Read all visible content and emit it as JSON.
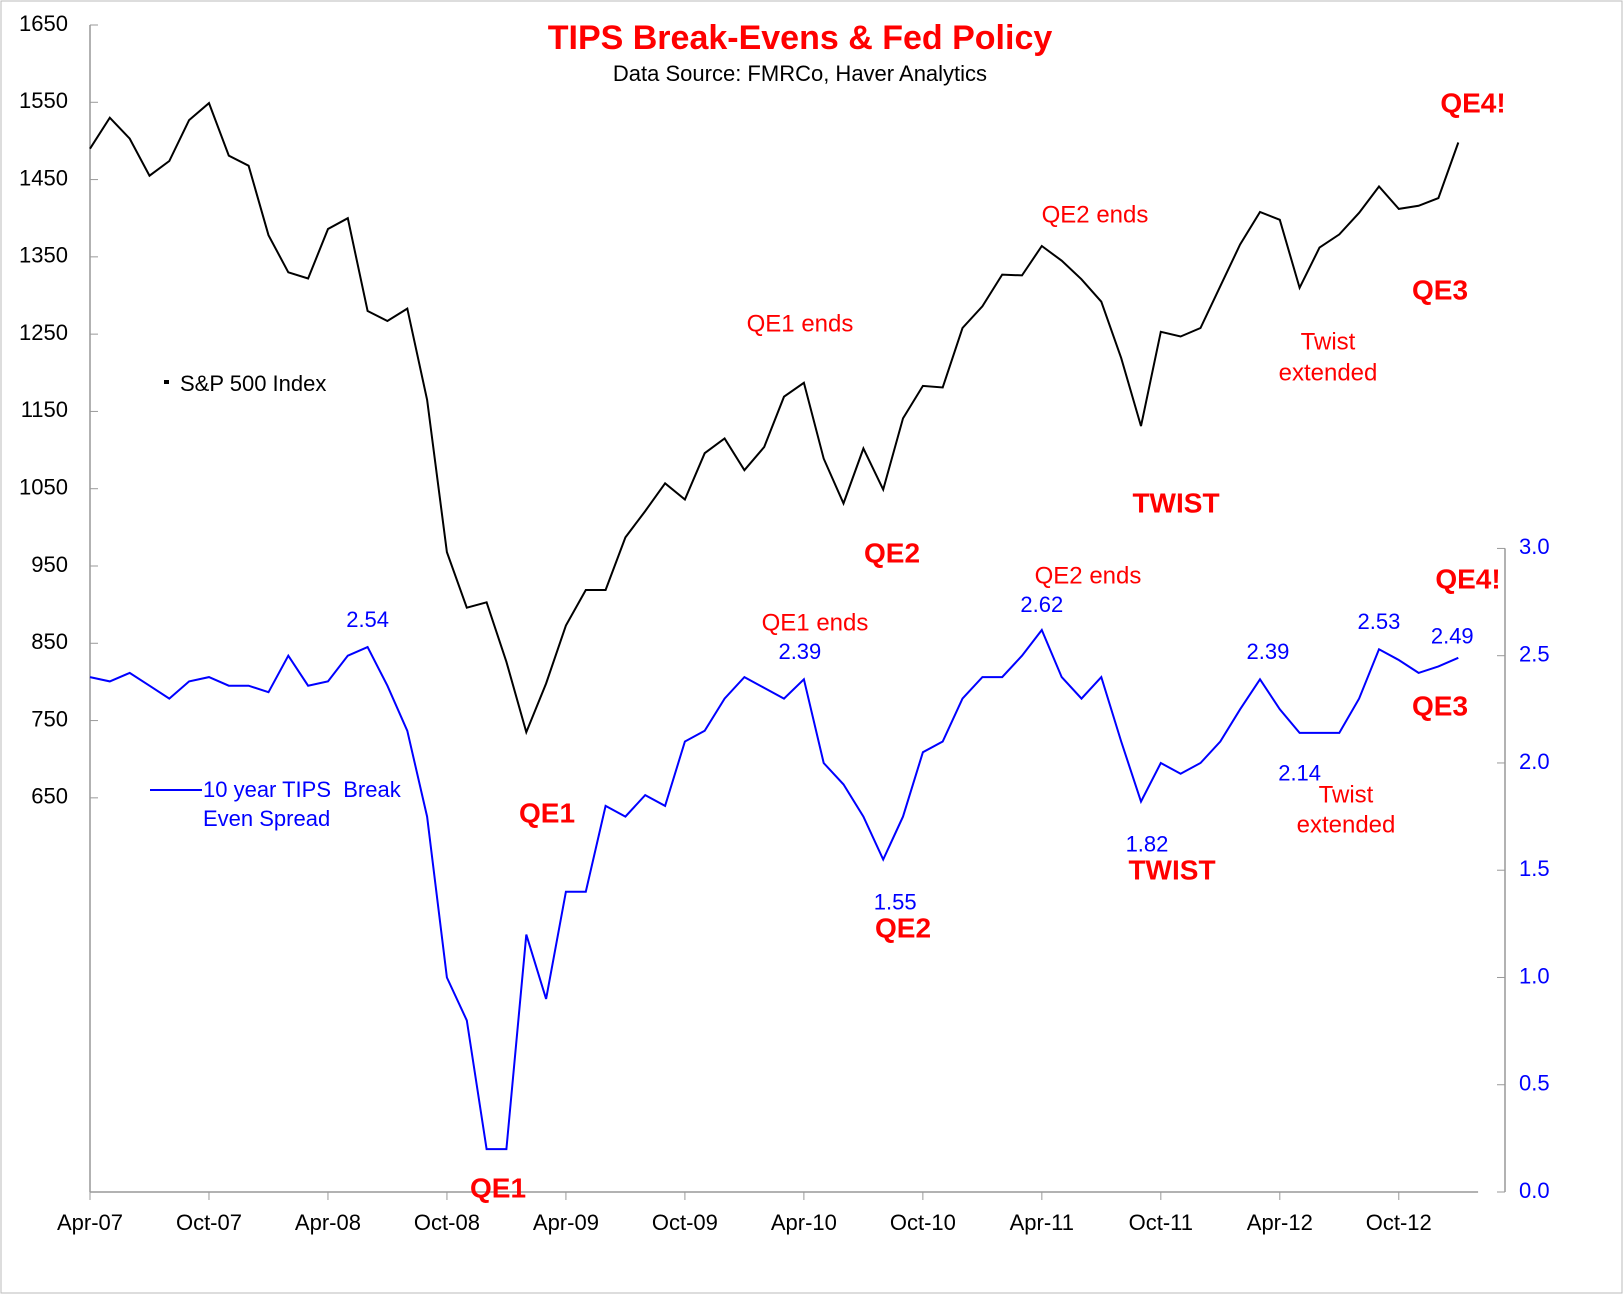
{
  "chart_data": {
    "type": "line",
    "title": "TIPS Break-Evens & Fed Policy",
    "subtitle": "Data Source: FMRCo, Haver Analytics",
    "title_color": "#ff0000",
    "annotation_color": "#ff0000",
    "x": [
      "2007-04",
      "2007-05",
      "2007-06",
      "2007-07",
      "2007-08",
      "2007-09",
      "2007-10",
      "2007-11",
      "2007-12",
      "2008-01",
      "2008-02",
      "2008-03",
      "2008-04",
      "2008-05",
      "2008-06",
      "2008-07",
      "2008-08",
      "2008-09",
      "2008-10",
      "2008-11",
      "2008-12",
      "2009-01",
      "2009-02",
      "2009-03",
      "2009-04",
      "2009-05",
      "2009-06",
      "2009-07",
      "2009-08",
      "2009-09",
      "2009-10",
      "2009-11",
      "2009-12",
      "2010-01",
      "2010-02",
      "2010-03",
      "2010-04",
      "2010-05",
      "2010-06",
      "2010-07",
      "2010-08",
      "2010-09",
      "2010-10",
      "2010-11",
      "2010-12",
      "2011-01",
      "2011-02",
      "2011-03",
      "2011-04",
      "2011-05",
      "2011-06",
      "2011-07",
      "2011-08",
      "2011-09",
      "2011-10",
      "2011-11",
      "2011-12",
      "2012-01",
      "2012-02",
      "2012-03",
      "2012-04",
      "2012-05",
      "2012-06",
      "2012-07",
      "2012-08",
      "2012-09",
      "2012-10",
      "2012-11",
      "2012-12",
      "2013-01"
    ],
    "xlim": [
      "2007-04",
      "2013-02"
    ],
    "xticks": [
      {
        "value": "2007-04",
        "label": "Apr-07"
      },
      {
        "value": "2007-10",
        "label": "Oct-07"
      },
      {
        "value": "2008-04",
        "label": "Apr-08"
      },
      {
        "value": "2008-10",
        "label": "Oct-08"
      },
      {
        "value": "2009-04",
        "label": "Apr-09"
      },
      {
        "value": "2009-10",
        "label": "Oct-09"
      },
      {
        "value": "2010-04",
        "label": "Apr-10"
      },
      {
        "value": "2010-10",
        "label": "Oct-10"
      },
      {
        "value": "2011-04",
        "label": "Apr-11"
      },
      {
        "value": "2011-10",
        "label": "Oct-11"
      },
      {
        "value": "2012-04",
        "label": "Apr-12"
      },
      {
        "value": "2012-10",
        "label": "Oct-12"
      }
    ],
    "ylim": [
      140,
      1650
    ],
    "yticks": [
      650,
      750,
      850,
      950,
      1050,
      1150,
      1250,
      1350,
      1450,
      1550,
      1650
    ],
    "y2lim": [
      0,
      5.44
    ],
    "y2ticks": [
      {
        "value": 0,
        "label": "0.0"
      },
      0.5,
      {
        "value": 1,
        "label": "1.0"
      },
      1.5,
      {
        "value": 2,
        "label": "2.0"
      },
      2.5,
      {
        "value": 3,
        "label": "3.0"
      }
    ],
    "grid": false,
    "series": [
      {
        "name": "S&P 500 Index",
        "color": "#000000",
        "values": [
          1490,
          1530,
          1503,
          1455,
          1474,
          1527,
          1549,
          1481,
          1468,
          1378,
          1330,
          1322,
          1386,
          1400,
          1280,
          1267,
          1283,
          1165,
          968,
          896,
          903,
          826,
          735,
          798,
          873,
          919,
          919,
          987,
          1021,
          1057,
          1036,
          1096,
          1115,
          1074,
          1104,
          1169,
          1187,
          1089,
          1031,
          1102,
          1049,
          1141,
          1183,
          1181,
          1258,
          1286,
          1327,
          1326,
          1364,
          1345,
          1321,
          1292,
          1219,
          1131,
          1253,
          1247,
          1258,
          1312,
          1366,
          1408,
          1398,
          1310,
          1362,
          1379,
          1407,
          1441,
          1412,
          1416,
          1426,
          1498
        ]
      },
      {
        "name": "10 year TIPS  Break Even Spread",
        "color": "#0000ff",
        "axis": "y2",
        "values": [
          2.4,
          2.38,
          2.42,
          2.36,
          2.3,
          2.38,
          2.4,
          2.36,
          2.36,
          2.33,
          2.5,
          2.36,
          2.38,
          2.5,
          2.54,
          2.36,
          2.15,
          1.75,
          1.0,
          0.8,
          0.2,
          0.2,
          1.2,
          0.9,
          1.4,
          1.4,
          1.8,
          1.75,
          1.85,
          1.8,
          2.1,
          2.15,
          2.3,
          2.4,
          2.35,
          2.3,
          2.39,
          2.0,
          1.9,
          1.75,
          1.55,
          1.75,
          2.05,
          2.1,
          2.3,
          2.4,
          2.4,
          2.5,
          2.62,
          2.4,
          2.3,
          2.4,
          2.1,
          1.82,
          2.0,
          1.95,
          2.0,
          2.1,
          2.25,
          2.39,
          2.25,
          2.14,
          2.14,
          2.14,
          2.3,
          2.53,
          2.48,
          2.42,
          2.45,
          2.49
        ]
      }
    ],
    "annotations": [
      {
        "text": "QE1 ends",
        "bold": false
      },
      {
        "text": "QE2 ends",
        "bold": false
      },
      {
        "text": "Twist",
        "bold": false
      },
      {
        "text": "extended",
        "bold": false
      },
      {
        "text": "QE4!",
        "bold": true
      },
      {
        "text": "QE3",
        "bold": true
      },
      {
        "text": "TWIST",
        "bold": true
      },
      {
        "text": "QE2",
        "bold": true
      },
      {
        "text": "QE1",
        "bold": true
      },
      {
        "text": "QE2 ends",
        "bold": false
      },
      {
        "text": "QE1 ends",
        "bold": false
      },
      {
        "text": "QE4!",
        "bold": true
      },
      {
        "text": "QE3",
        "bold": true
      },
      {
        "text": "TWIST",
        "bold": true
      },
      {
        "text": "Twist",
        "bold": false
      },
      {
        "text": "extended",
        "bold": false
      },
      {
        "text": "QE2",
        "bold": true
      },
      {
        "text": "QE1",
        "bold": true
      }
    ]
  }
}
